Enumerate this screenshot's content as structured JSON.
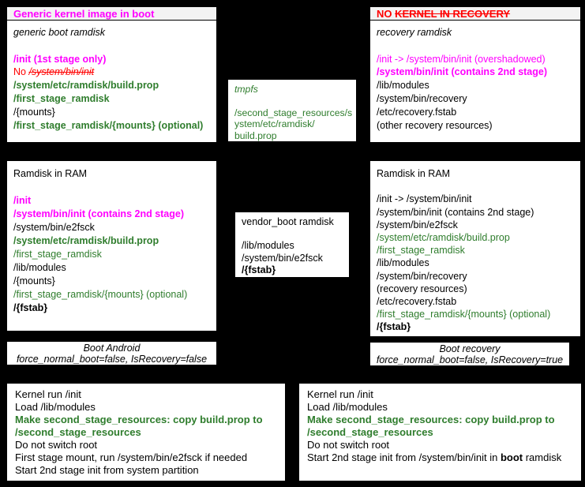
{
  "colors": {
    "magenta": "#ff00ff",
    "red": "#ff0000",
    "green": "#2f7d2d",
    "black": "#000000",
    "header_bg": "#f3f3f3",
    "box_bg": "#ffffff",
    "page_bg": "#000000"
  },
  "panels": {
    "boot_header": {
      "lines": [
        {
          "text": "Generic kernel image in boot",
          "color": "magenta",
          "bold": true
        }
      ]
    },
    "recovery_header": {
      "lines": [
        {
          "segments": [
            {
              "text": "NO ",
              "color": "red",
              "bold": true
            },
            {
              "text": "KERNEL IN RECOVERY",
              "color": "red",
              "bold": true,
              "strike": true
            }
          ]
        }
      ]
    },
    "generic_boot_ramdisk": {
      "lines": [
        {
          "text": "generic boot ramdisk",
          "italic": true
        },
        {
          "text": ""
        },
        {
          "text": "/init (1st stage only)",
          "color": "magenta",
          "bold": true
        },
        {
          "segments": [
            {
              "text": "No ",
              "color": "red"
            },
            {
              "text": "/system/bin/init",
              "color": "red",
              "italic": true,
              "strike": true
            }
          ]
        },
        {
          "text": "/system/etc/ramdisk/build.prop",
          "color": "green",
          "bold": true
        },
        {
          "text": "/first_stage_ramdisk",
          "color": "green",
          "bold": true
        },
        {
          "text": "/{mounts}"
        },
        {
          "text": "/first_stage_ramdisk/{mounts} (optional)",
          "color": "green",
          "bold": true
        }
      ]
    },
    "recovery_ramdisk": {
      "lines": [
        {
          "text": "recovery ramdisk",
          "italic": true
        },
        {
          "text": ""
        },
        {
          "text": "/init -> /system/bin/init (overshadowed)",
          "color": "magenta"
        },
        {
          "text": "/system/bin/init (contains 2nd stage)",
          "color": "magenta",
          "bold": true
        },
        {
          "text": "/lib/modules"
        },
        {
          "text": "/system/bin/recovery"
        },
        {
          "text": "/etc/recovery.fstab"
        },
        {
          "text": "(other recovery resources)"
        }
      ]
    },
    "tmpfs": {
      "lines": [
        {
          "text": "tmpfs",
          "color": "green",
          "italic": true
        },
        {
          "text": ""
        },
        {
          "text": "/second_stage_resources/s",
          "color": "green"
        },
        {
          "text": "ystem/etc/ramdisk/",
          "color": "green"
        },
        {
          "text": "build.prop",
          "color": "green"
        }
      ]
    },
    "ramdisk_in_ram_left": {
      "lines": [
        {
          "text": "Ramdisk in RAM"
        },
        {
          "text": ""
        },
        {
          "text": "/init",
          "color": "magenta",
          "bold": true
        },
        {
          "text": "/system/bin/init (contains 2nd stage)",
          "color": "magenta",
          "bold": true
        },
        {
          "text": "/system/bin/e2fsck"
        },
        {
          "text": "/system/etc/ramdisk/build.prop",
          "color": "green",
          "bold": true
        },
        {
          "text": "/first_stage_ramdisk",
          "color": "green"
        },
        {
          "text": "/lib/modules"
        },
        {
          "text": "/{mounts}"
        },
        {
          "text": "/first_stage_ramdisk/{mounts} (optional)",
          "color": "green"
        },
        {
          "text": "/{fstab}",
          "bold": true
        }
      ]
    },
    "vendor_boot_ramdisk": {
      "lines": [
        {
          "text": "vendor_boot ramdisk"
        },
        {
          "text": ""
        },
        {
          "text": "/lib/modules"
        },
        {
          "text": "/system/bin/e2fsck"
        },
        {
          "text": "/{fstab}",
          "bold": true
        }
      ]
    },
    "ramdisk_in_ram_right": {
      "lines": [
        {
          "text": "Ramdisk in RAM"
        },
        {
          "text": ""
        },
        {
          "text": "/init -> /system/bin/init"
        },
        {
          "text": "/system/bin/init (contains 2nd stage)"
        },
        {
          "text": "/system/bin/e2fsck"
        },
        {
          "text": "/system/etc/ramdisk/build.prop",
          "color": "green"
        },
        {
          "text": "/first_stage_ramdisk",
          "color": "green"
        },
        {
          "text": "/lib/modules"
        },
        {
          "text": "/system/bin/recovery"
        },
        {
          "text": "(recovery resources)"
        },
        {
          "text": "/etc/recovery.fstab"
        },
        {
          "text": "/first_stage_ramdisk/{mounts} (optional)",
          "color": "green"
        },
        {
          "text": "/{fstab}",
          "bold": true
        }
      ]
    },
    "boot_android_label": {
      "lines": [
        {
          "text": "Boot Android",
          "italic": true
        },
        {
          "text": "force_normal_boot=false, IsRecovery=false",
          "italic": true
        }
      ]
    },
    "boot_recovery_label": {
      "lines": [
        {
          "text": "Boot recovery",
          "italic": true
        },
        {
          "text": "force_normal_boot=false, IsRecovery=true",
          "italic": true
        }
      ]
    },
    "kernel_steps_android": {
      "lines": [
        {
          "text": "Kernel run /init"
        },
        {
          "text": "Load /lib/modules"
        },
        {
          "text": "Make second_stage_resources: copy build.prop to",
          "color": "green",
          "bold": true
        },
        {
          "text": "/second_stage_resources",
          "color": "green",
          "bold": true
        },
        {
          "text": "Do not switch root"
        },
        {
          "text": "First stage mount, run /system/bin/e2fsck if needed"
        },
        {
          "text": "Start 2nd stage init from system partition"
        }
      ]
    },
    "kernel_steps_recovery": {
      "lines": [
        {
          "text": "Kernel run /init"
        },
        {
          "text": "Load /lib/modules"
        },
        {
          "text": "Make second_stage_resources: copy build.prop to",
          "color": "green",
          "bold": true
        },
        {
          "text": "/second_stage_resources",
          "color": "green",
          "bold": true
        },
        {
          "text": "Do not switch root"
        },
        {
          "segments": [
            {
              "text": "Start 2nd stage init from /system/bin/init in "
            },
            {
              "text": "boot",
              "bold": true
            },
            {
              "text": " ramdisk"
            }
          ]
        }
      ]
    }
  }
}
